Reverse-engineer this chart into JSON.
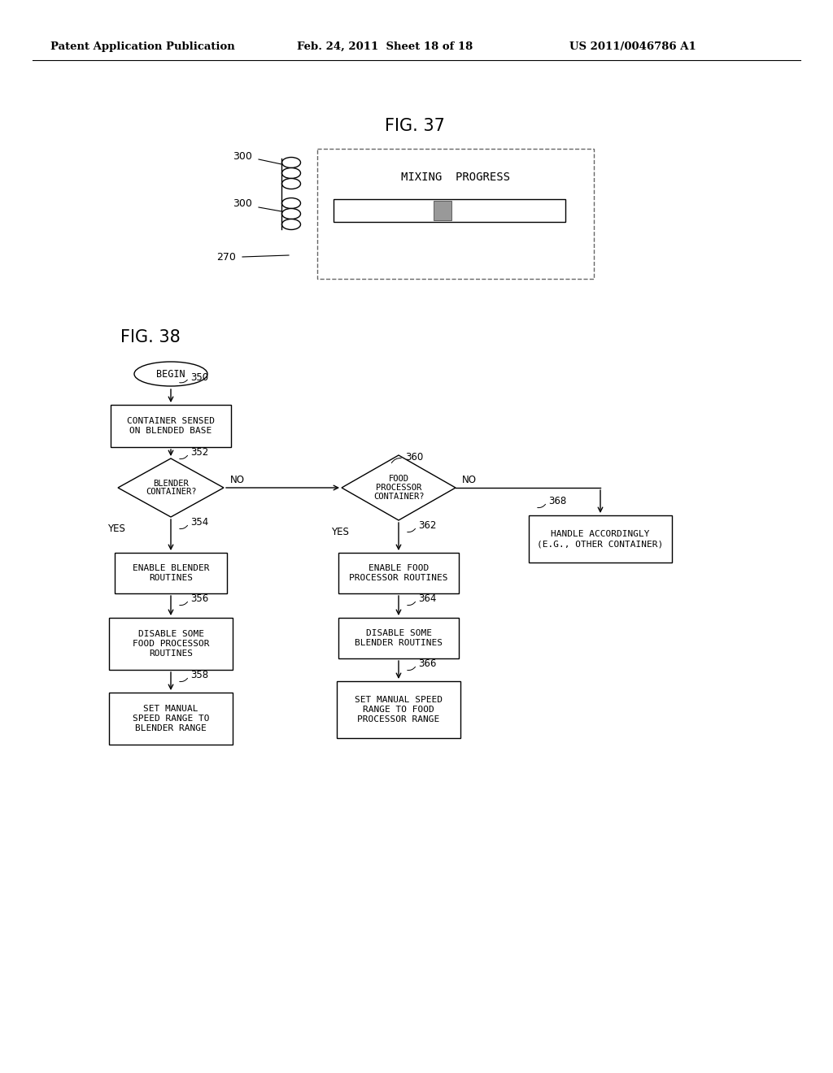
{
  "bg_color": "#ffffff",
  "lc": "#000000",
  "tc": "#000000",
  "header_left": "Patent Application Publication",
  "header_mid": "Feb. 24, 2011  Sheet 18 of 18",
  "header_right": "US 2011/0046786 A1",
  "fig37_title": "FIG. 37",
  "fig38_title": "FIG. 38",
  "mixing_progress": "MIXING  PROGRESS",
  "begin_label": "BEGIN",
  "box1": [
    "CONTAINER SENSED",
    "ON BLENDED BASE"
  ],
  "d1": [
    "BLENDER",
    "CONTAINER?"
  ],
  "box2": [
    "ENABLE BLENDER",
    "ROUTINES"
  ],
  "box3": [
    "DISABLE SOME",
    "FOOD PROCESSOR",
    "ROUTINES"
  ],
  "box4": [
    "SET MANUAL",
    "SPEED RANGE TO",
    "BLENDER RANGE"
  ],
  "d2": [
    "FOOD",
    "PROCESSOR",
    "CONTAINER?"
  ],
  "box5": [
    "ENABLE FOOD",
    "PROCESSOR ROUTINES"
  ],
  "box6": [
    "DISABLE SOME",
    "BLENDER ROUTINES"
  ],
  "box7": [
    "SET MANUAL SPEED",
    "RANGE TO FOOD",
    "PROCESSOR RANGE"
  ],
  "box8": [
    "HANDLE ACCORDINGLY",
    "(E.G., OTHER CONTAINER)"
  ],
  "refs": {
    "r350": "350",
    "r352": "352",
    "r354": "354",
    "r356": "356",
    "r358": "358",
    "r360": "360",
    "r362": "362",
    "r364": "364",
    "r366": "366",
    "r368": "368",
    "r300a": "300",
    "r300b": "300",
    "r270": "270"
  }
}
